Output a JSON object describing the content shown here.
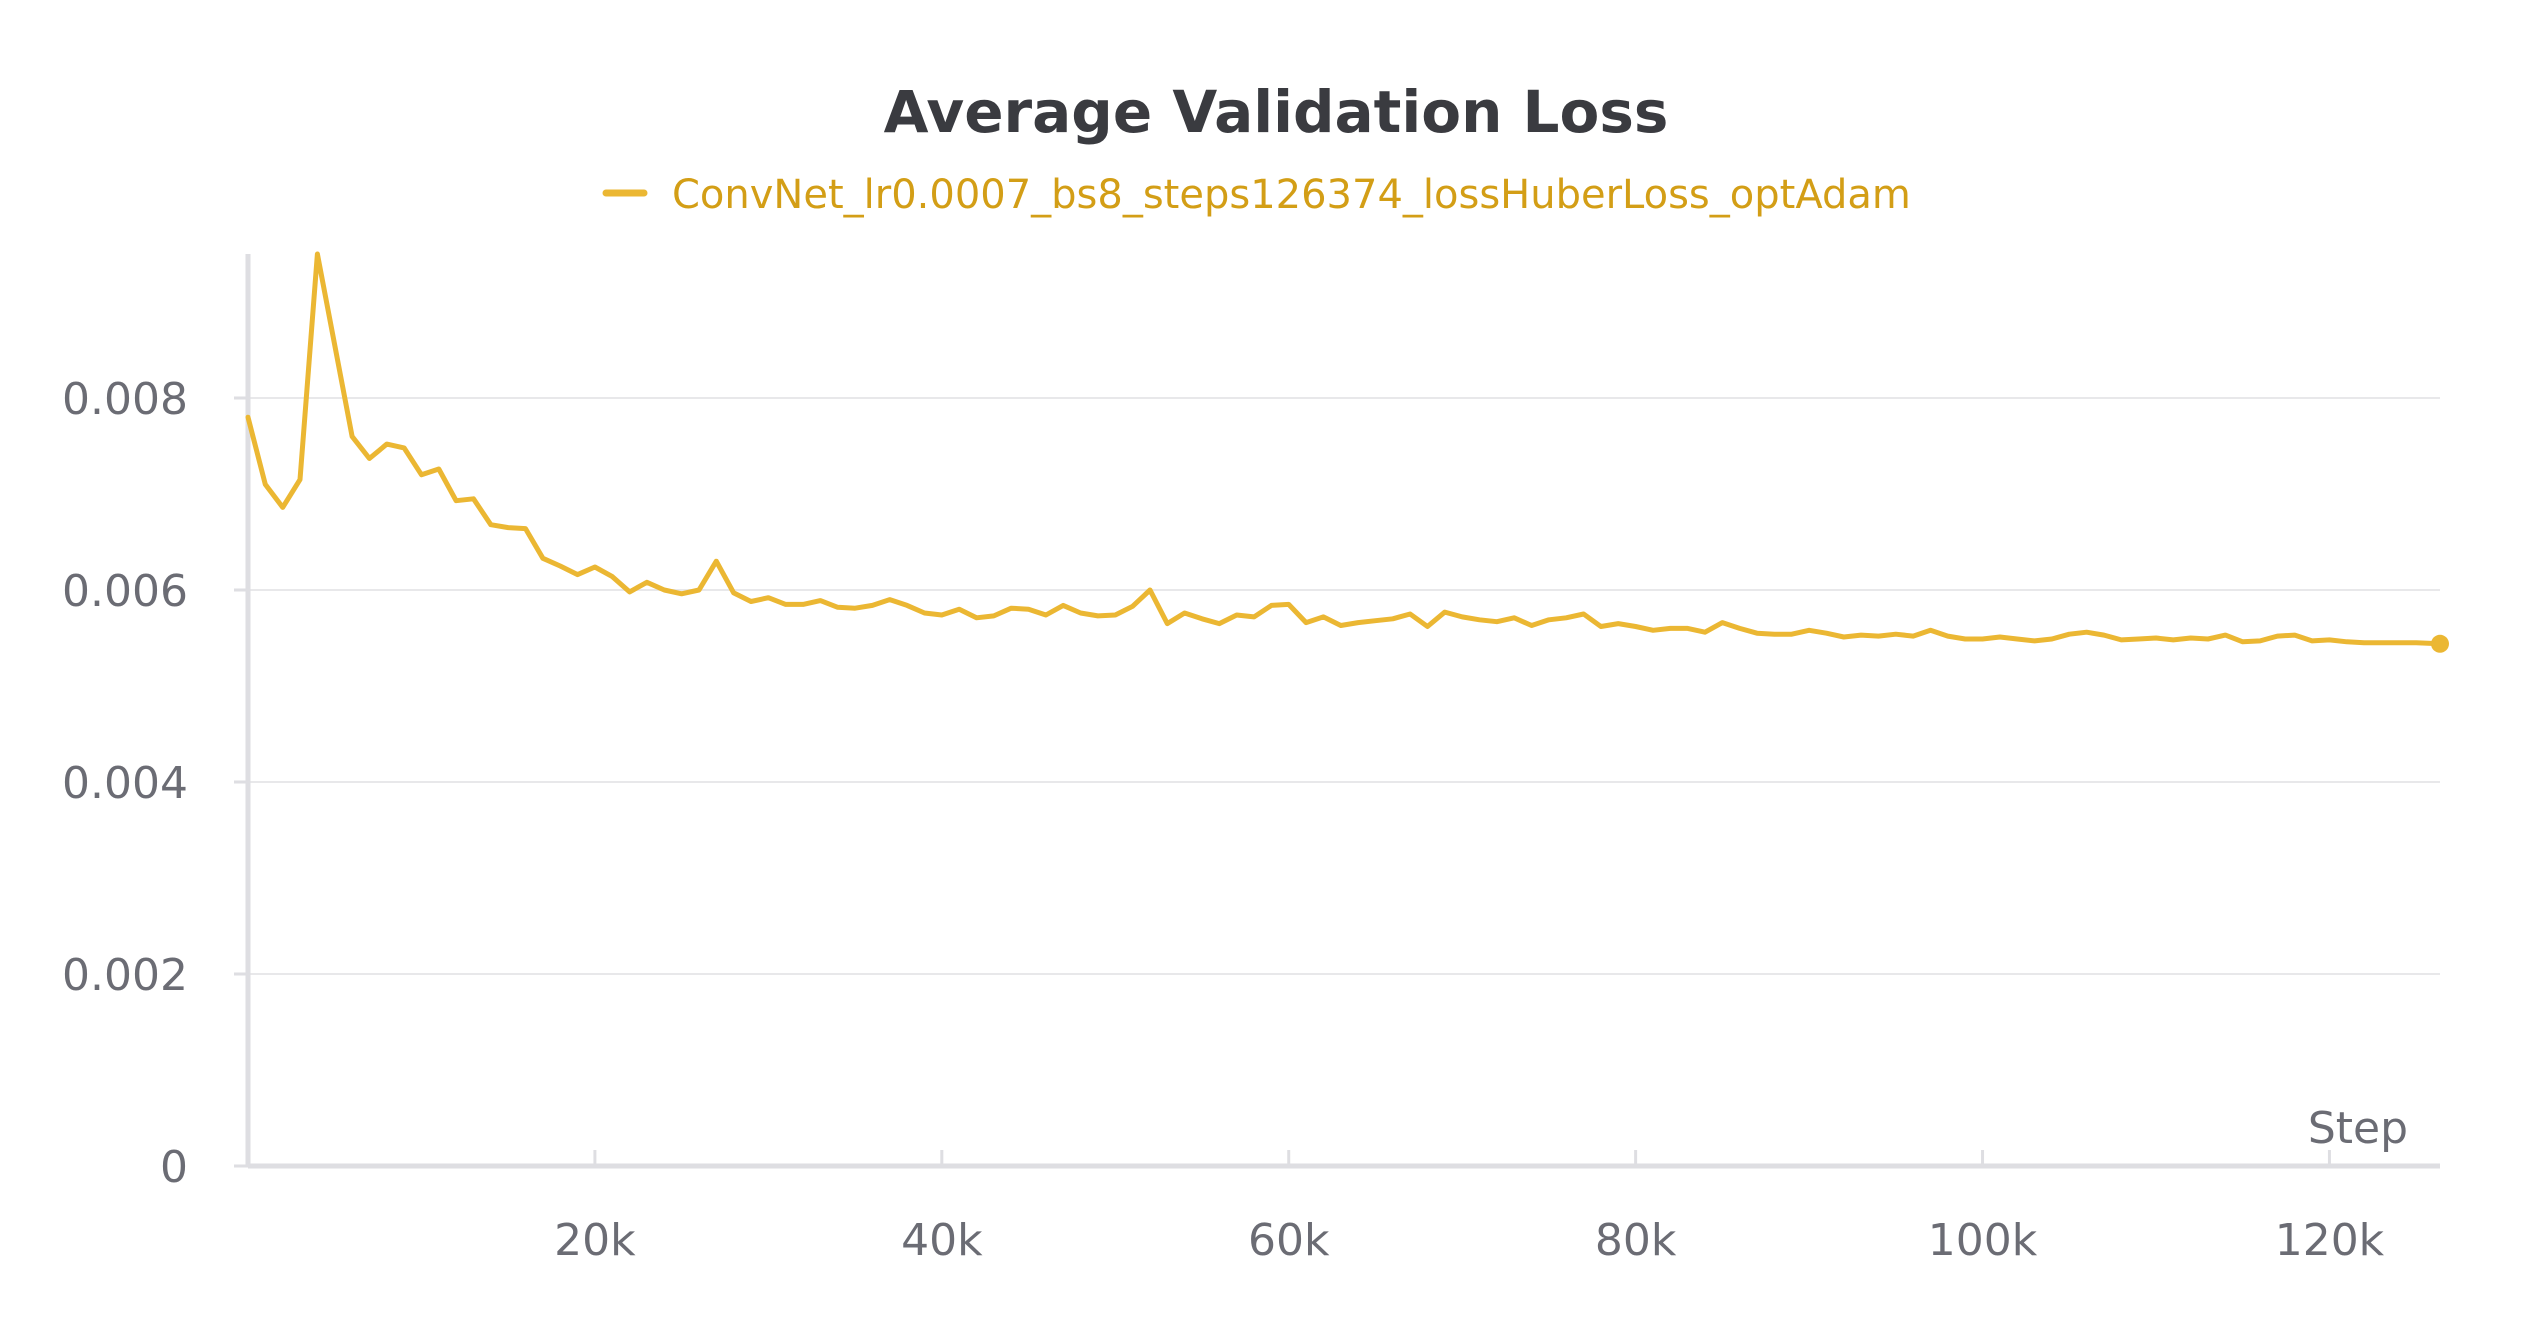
{
  "colors": {
    "series": "#EBB733",
    "legend_text": "#D39E16",
    "grid": "#E8E8EA",
    "axis": "#DEDEE2",
    "tick_text": "#6B6C74",
    "title": "#3A3B40"
  },
  "chart_data": {
    "type": "line",
    "title": "Average Validation Loss",
    "xlabel": "Step",
    "ylabel": "",
    "xlim": [
      0,
      126374
    ],
    "ylim": [
      0,
      0.0095
    ],
    "grid": true,
    "legend_position": "top",
    "x_ticks": [
      20000,
      40000,
      60000,
      80000,
      100000,
      120000
    ],
    "x_tick_labels": [
      "20k",
      "40k",
      "60k",
      "80k",
      "100k",
      "120k"
    ],
    "y_ticks": [
      0,
      0.002,
      0.004,
      0.006,
      0.008
    ],
    "y_tick_labels": [
      "0",
      "0.002",
      "0.004",
      "0.006",
      "0.008"
    ],
    "series": [
      {
        "name": "ConvNet_lr0.0007_bs8_steps126374_lossHuberLoss_optAdam",
        "x": [
          0,
          1000,
          2000,
          3000,
          4000,
          6000,
          7000,
          8000,
          9000,
          10000,
          11000,
          12000,
          13000,
          14000,
          15000,
          16000,
          17000,
          18000,
          19000,
          20000,
          21000,
          22000,
          23000,
          24000,
          25000,
          26000,
          27000,
          28000,
          29000,
          30000,
          31000,
          32000,
          33000,
          34000,
          35000,
          36000,
          37000,
          38000,
          39000,
          40000,
          41000,
          42000,
          43000,
          44000,
          45000,
          46000,
          47000,
          48000,
          49000,
          50000,
          51000,
          52000,
          53000,
          54000,
          55000,
          56000,
          57000,
          58000,
          59000,
          60000,
          61000,
          62000,
          63000,
          64000,
          65000,
          66000,
          67000,
          68000,
          69000,
          70000,
          71000,
          72000,
          73000,
          74000,
          75000,
          76000,
          77000,
          78000,
          79000,
          80000,
          81000,
          82000,
          83000,
          84000,
          85000,
          86000,
          87000,
          88000,
          89000,
          90000,
          91000,
          92000,
          93000,
          94000,
          95000,
          96000,
          97000,
          98000,
          99000,
          100000,
          101000,
          102000,
          103000,
          104000,
          105000,
          106000,
          107000,
          108000,
          109000,
          110000,
          111000,
          112000,
          113000,
          114000,
          115000,
          116000,
          117000,
          118000,
          119000,
          120000,
          121000,
          122000,
          123000,
          124000,
          125000,
          126374
        ],
        "y": [
          0.0078,
          0.0071,
          0.00686,
          0.00715,
          0.0095,
          0.0076,
          0.00737,
          0.00752,
          0.00748,
          0.0072,
          0.00726,
          0.00693,
          0.00695,
          0.00668,
          0.00665,
          0.00664,
          0.00633,
          0.00625,
          0.00616,
          0.00624,
          0.00614,
          0.00598,
          0.00608,
          0.006,
          0.00596,
          0.006,
          0.0063,
          0.00597,
          0.00588,
          0.00592,
          0.00585,
          0.00585,
          0.00589,
          0.00582,
          0.00581,
          0.00584,
          0.0059,
          0.00584,
          0.00576,
          0.00574,
          0.0058,
          0.00571,
          0.00573,
          0.00581,
          0.0058,
          0.00574,
          0.00584,
          0.00576,
          0.00573,
          0.00574,
          0.00583,
          0.006,
          0.00565,
          0.00576,
          0.0057,
          0.00565,
          0.00574,
          0.00572,
          0.00584,
          0.00585,
          0.00566,
          0.00572,
          0.00563,
          0.00566,
          0.00568,
          0.0057,
          0.00575,
          0.00562,
          0.00577,
          0.00572,
          0.00569,
          0.00567,
          0.00571,
          0.00563,
          0.00569,
          0.00571,
          0.00575,
          0.00562,
          0.00565,
          0.00562,
          0.00558,
          0.0056,
          0.0056,
          0.00556,
          0.00566,
          0.0056,
          0.00555,
          0.00554,
          0.00554,
          0.00558,
          0.00555,
          0.00551,
          0.00553,
          0.00552,
          0.00554,
          0.00552,
          0.00558,
          0.00552,
          0.00549,
          0.00549,
          0.00551,
          0.00549,
          0.00547,
          0.00549,
          0.00554,
          0.00556,
          0.00553,
          0.00548,
          0.00549,
          0.0055,
          0.00548,
          0.0055,
          0.00549,
          0.00553,
          0.00546,
          0.00547,
          0.00552,
          0.00553,
          0.00547,
          0.00548,
          0.00546,
          0.00545,
          0.00545,
          0.00545,
          0.00545,
          0.00544
        ]
      }
    ]
  }
}
